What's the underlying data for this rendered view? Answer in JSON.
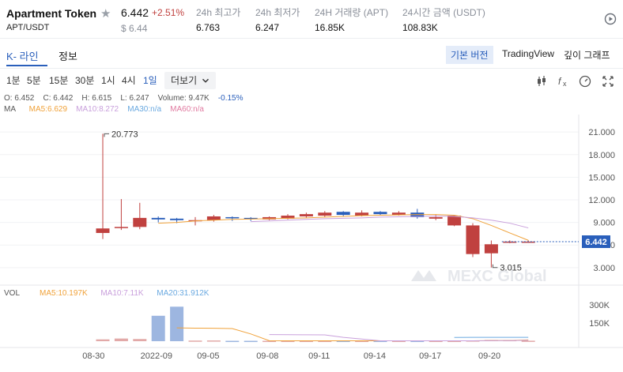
{
  "header": {
    "name": "Apartment Token",
    "pair": "APT/USDT",
    "price": "6.442",
    "change": "+2.51%",
    "price_usd": "$ 6.44",
    "stats": [
      {
        "label": "24h 최고가",
        "value": "6.763"
      },
      {
        "label": "24h 최저가",
        "value": "6.247"
      },
      {
        "label": "24H 거래량 (APT)",
        "value": "16.85K"
      },
      {
        "label": "24시간 금액 (USDT)",
        "value": "108.83K"
      }
    ]
  },
  "tabs": {
    "kline": "K- 라인",
    "info": "정보",
    "basic": "기본 버전",
    "tradingview": "TradingView",
    "depth": "깊이 그래프"
  },
  "intervals": [
    "1분",
    "5분",
    "15분",
    "30분",
    "1시",
    "4시",
    "1일",
    "더보기"
  ],
  "ohlc": {
    "o": "O: 6.452",
    "c": "C: 6.442",
    "h": "H: 6.615",
    "l": "L: 6.247",
    "vol": "Volume: 9.47K",
    "chg": "-0.15%"
  },
  "ma": {
    "label": "MA",
    "ma5": "MA5:6.629",
    "ma10": "MA10:8.272",
    "ma30": "MA30:n/a",
    "ma60": "MA60:n/a"
  },
  "vol_legend": {
    "label": "VOL",
    "ma5": "MA5:10.197K",
    "ma10": "MA10:7.11K",
    "ma20": "MA20:31.912K"
  },
  "annotations": {
    "high": "20.773",
    "low": "3.015",
    "last": "6.442"
  },
  "watermark": "MEXC Global",
  "colors": {
    "up": "#c0413f",
    "down": "#2a5fbb",
    "ma5": "#f0a23a",
    "ma10": "#c9a0dc",
    "ma20": "#6aa9e0",
    "accent": "#2a5fbb"
  },
  "chart_data": {
    "type": "candlestick",
    "y_ticks": [
      "21.000",
      "18.000",
      "15.000",
      "12.000",
      "9.000",
      "6.000",
      "3.000"
    ],
    "ylim": [
      1.2,
      22.8
    ],
    "vol_ticks": [
      "300K",
      "150K"
    ],
    "vol_ylim": [
      0,
      300000
    ],
    "x_ticks": [
      "08-30",
      "2022-09",
      "09-05",
      "09-08",
      "09-11",
      "09-14",
      "09-17",
      "09-20"
    ],
    "candles": [
      {
        "o": 8.2,
        "h": 20.773,
        "l": 6.8,
        "c": 7.6,
        "v": 15000
      },
      {
        "o": 8.4,
        "h": 12.1,
        "l": 8.0,
        "c": 8.3,
        "v": 22000
      },
      {
        "o": 9.6,
        "h": 11.6,
        "l": 8.1,
        "c": 8.4,
        "v": 18000
      },
      {
        "o": 9.4,
        "h": 9.8,
        "l": 9.0,
        "c": 9.6,
        "v": 210000
      },
      {
        "o": 9.3,
        "h": 9.6,
        "l": 8.9,
        "c": 9.5,
        "v": 285000
      },
      {
        "o": 9.3,
        "h": 9.7,
        "l": 8.6,
        "c": 9.2,
        "v": 5000
      },
      {
        "o": 9.8,
        "h": 10.0,
        "l": 9.1,
        "c": 9.3,
        "v": 6000
      },
      {
        "o": 9.6,
        "h": 9.8,
        "l": 9.2,
        "c": 9.7,
        "v": 3000
      },
      {
        "o": 9.5,
        "h": 9.7,
        "l": 9.2,
        "c": 9.6,
        "v": 3000
      },
      {
        "o": 9.7,
        "h": 9.8,
        "l": 9.3,
        "c": 9.4,
        "v": 3000
      },
      {
        "o": 9.9,
        "h": 10.1,
        "l": 9.4,
        "c": 9.5,
        "v": 3000
      },
      {
        "o": 10.1,
        "h": 10.3,
        "l": 9.6,
        "c": 9.8,
        "v": 3000
      },
      {
        "o": 10.3,
        "h": 10.5,
        "l": 9.7,
        "c": 9.9,
        "v": 3000
      },
      {
        "o": 10.0,
        "h": 10.5,
        "l": 9.8,
        "c": 10.4,
        "v": 3000
      },
      {
        "o": 10.3,
        "h": 10.6,
        "l": 9.8,
        "c": 9.9,
        "v": 3000
      },
      {
        "o": 10.1,
        "h": 10.5,
        "l": 9.9,
        "c": 10.4,
        "v": 3000
      },
      {
        "o": 10.3,
        "h": 10.5,
        "l": 9.9,
        "c": 10.0,
        "v": 3000
      },
      {
        "o": 9.7,
        "h": 10.8,
        "l": 9.5,
        "c": 10.3,
        "v": 3000
      },
      {
        "o": 9.7,
        "h": 10.0,
        "l": 9.3,
        "c": 9.5,
        "v": 3000
      },
      {
        "o": 9.9,
        "h": 10.0,
        "l": 8.5,
        "c": 8.6,
        "v": 3000
      },
      {
        "o": 8.6,
        "h": 8.9,
        "l": 4.4,
        "c": 4.8,
        "v": 6000
      },
      {
        "o": 6.1,
        "h": 6.6,
        "l": 3.015,
        "c": 4.9,
        "v": 10000
      },
      {
        "o": 6.452,
        "h": 6.615,
        "l": 6.247,
        "c": 6.442,
        "v": 9470
      },
      {
        "o": 6.45,
        "h": 6.62,
        "l": 6.3,
        "c": 6.4,
        "v": 4000
      }
    ],
    "ma5": [
      null,
      null,
      null,
      8.9,
      9.0,
      9.2,
      9.3,
      9.4,
      9.45,
      9.5,
      9.55,
      9.6,
      9.7,
      9.8,
      9.9,
      9.95,
      10.0,
      10.05,
      10.05,
      9.95,
      9.5,
      8.6,
      7.6,
      6.629
    ],
    "ma10": [
      null,
      null,
      null,
      null,
      null,
      null,
      null,
      null,
      9.1,
      9.2,
      9.3,
      9.4,
      9.5,
      9.55,
      9.6,
      9.7,
      9.75,
      9.8,
      9.85,
      9.8,
      9.6,
      9.3,
      8.9,
      8.272
    ],
    "vol_ma5": [
      null,
      null,
      null,
      null,
      110000,
      108000,
      107000,
      104000,
      60000,
      4000,
      3000,
      3000,
      3000,
      3000,
      3000,
      3000,
      3000,
      3000,
      3000,
      3000,
      3600,
      4800,
      6000,
      10197
    ],
    "vol_ma10": [
      null,
      null,
      null,
      null,
      null,
      null,
      null,
      null,
      null,
      55000,
      54000,
      53000,
      52000,
      32000,
      18000,
      3000,
      3000,
      3000,
      3000,
      3000,
      3300,
      4000,
      5000,
      7110
    ],
    "vol_ma20": [
      null,
      null,
      null,
      null,
      null,
      null,
      null,
      null,
      null,
      null,
      null,
      null,
      null,
      null,
      null,
      null,
      null,
      null,
      null,
      31000,
      31500,
      31700,
      31800,
      31912
    ]
  }
}
